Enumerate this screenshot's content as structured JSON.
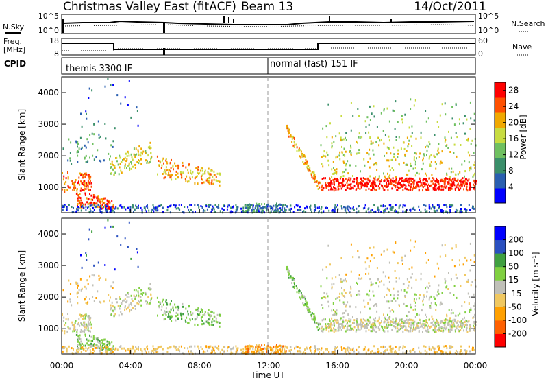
{
  "header": {
    "title": "Christmas Valley East (fitACF)",
    "beam": "Beam 13",
    "date": "14/Oct/2011"
  },
  "noise_panel": {
    "left_label": "N.Sky",
    "left_ticks": [
      "10^5",
      "10^0"
    ],
    "right_label": "N.Search",
    "right_ticks": [
      "10^5",
      "10^0"
    ]
  },
  "freq_panel": {
    "left_label_1": "Freq.",
    "left_label_2": "[MHz]",
    "left_ticks": [
      "18",
      "8"
    ],
    "right_label": "Nave",
    "right_ticks": [
      "60",
      "0"
    ]
  },
  "cpid_panel": {
    "label": "CPID",
    "mode1": "themis 3300 IF",
    "mode2": "normal (fast) 151 IF"
  },
  "colors": {
    "power_scale": [
      "#0000ff",
      "#2a5fb0",
      "#3a8f6a",
      "#6fc060",
      "#c8dc40",
      "#f0a800",
      "#ff5000",
      "#ff0000"
    ],
    "velocity_scale": [
      "#ff0000",
      "#ff6000",
      "#ffa000",
      "#f0c860",
      "#c0c0b8",
      "#80d040",
      "#40a040",
      "#2a50c0",
      "#0000ff"
    ]
  },
  "chart_data": [
    {
      "type": "heatmap",
      "name": "power",
      "ylabel": "Slant Range [km]",
      "yticks": [
        "1000",
        "2000",
        "3000",
        "4000"
      ],
      "ylim": [
        200,
        4500
      ],
      "xlim": [
        "00:00",
        "24:00"
      ],
      "colorbar_label": "Power [dB]",
      "colorbar_ticks": [
        "4",
        "8",
        "12",
        "16",
        "20",
        "24",
        "28"
      ],
      "colorbar_range": [
        0,
        30
      ],
      "vertical_marker": "12:00"
    },
    {
      "type": "heatmap",
      "name": "velocity",
      "ylabel": "Slant Range [km]",
      "yticks": [
        "1000",
        "2000",
        "3000",
        "4000"
      ],
      "ylim": [
        200,
        4500
      ],
      "xlim": [
        "00:00",
        "24:00"
      ],
      "xlabel": "Time UT",
      "xticks": [
        "00:00",
        "04:00",
        "08:00",
        "12:00",
        "16:00",
        "20:00",
        "00:00"
      ],
      "colorbar_label": "Velocity [m s⁻¹]",
      "colorbar_ticks": [
        "200",
        "100",
        "50",
        "15",
        "-15",
        "-50",
        "-100",
        "-200"
      ],
      "vertical_marker": "12:00"
    }
  ]
}
